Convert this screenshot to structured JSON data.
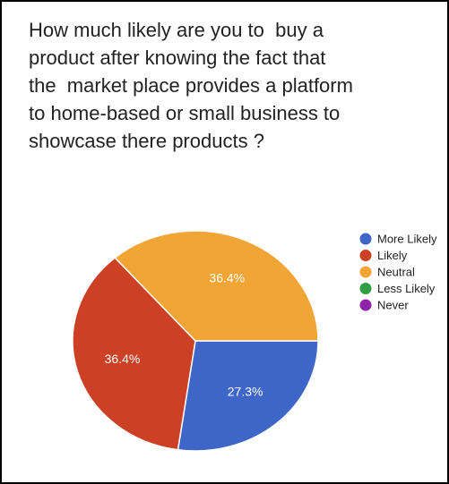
{
  "chart_data": {
    "type": "pie",
    "title": "How much likely are you to  buy a\nproduct after knowing the fact that\nthe  market place provides a platform\nto home-based or small business to\nshowcase there products ?",
    "categories": [
      "More Likely",
      "Likely",
      "Neutral",
      "Less Likely",
      "Never"
    ],
    "values": [
      27.3,
      36.4,
      36.4,
      0,
      0
    ],
    "labels": [
      "27.3%",
      "36.4%",
      "36.4%",
      "",
      ""
    ],
    "colors": [
      "#3e66c8",
      "#cc4125",
      "#f0a535",
      "#2f9e44",
      "#8e24aa"
    ],
    "legend_position": "right"
  }
}
